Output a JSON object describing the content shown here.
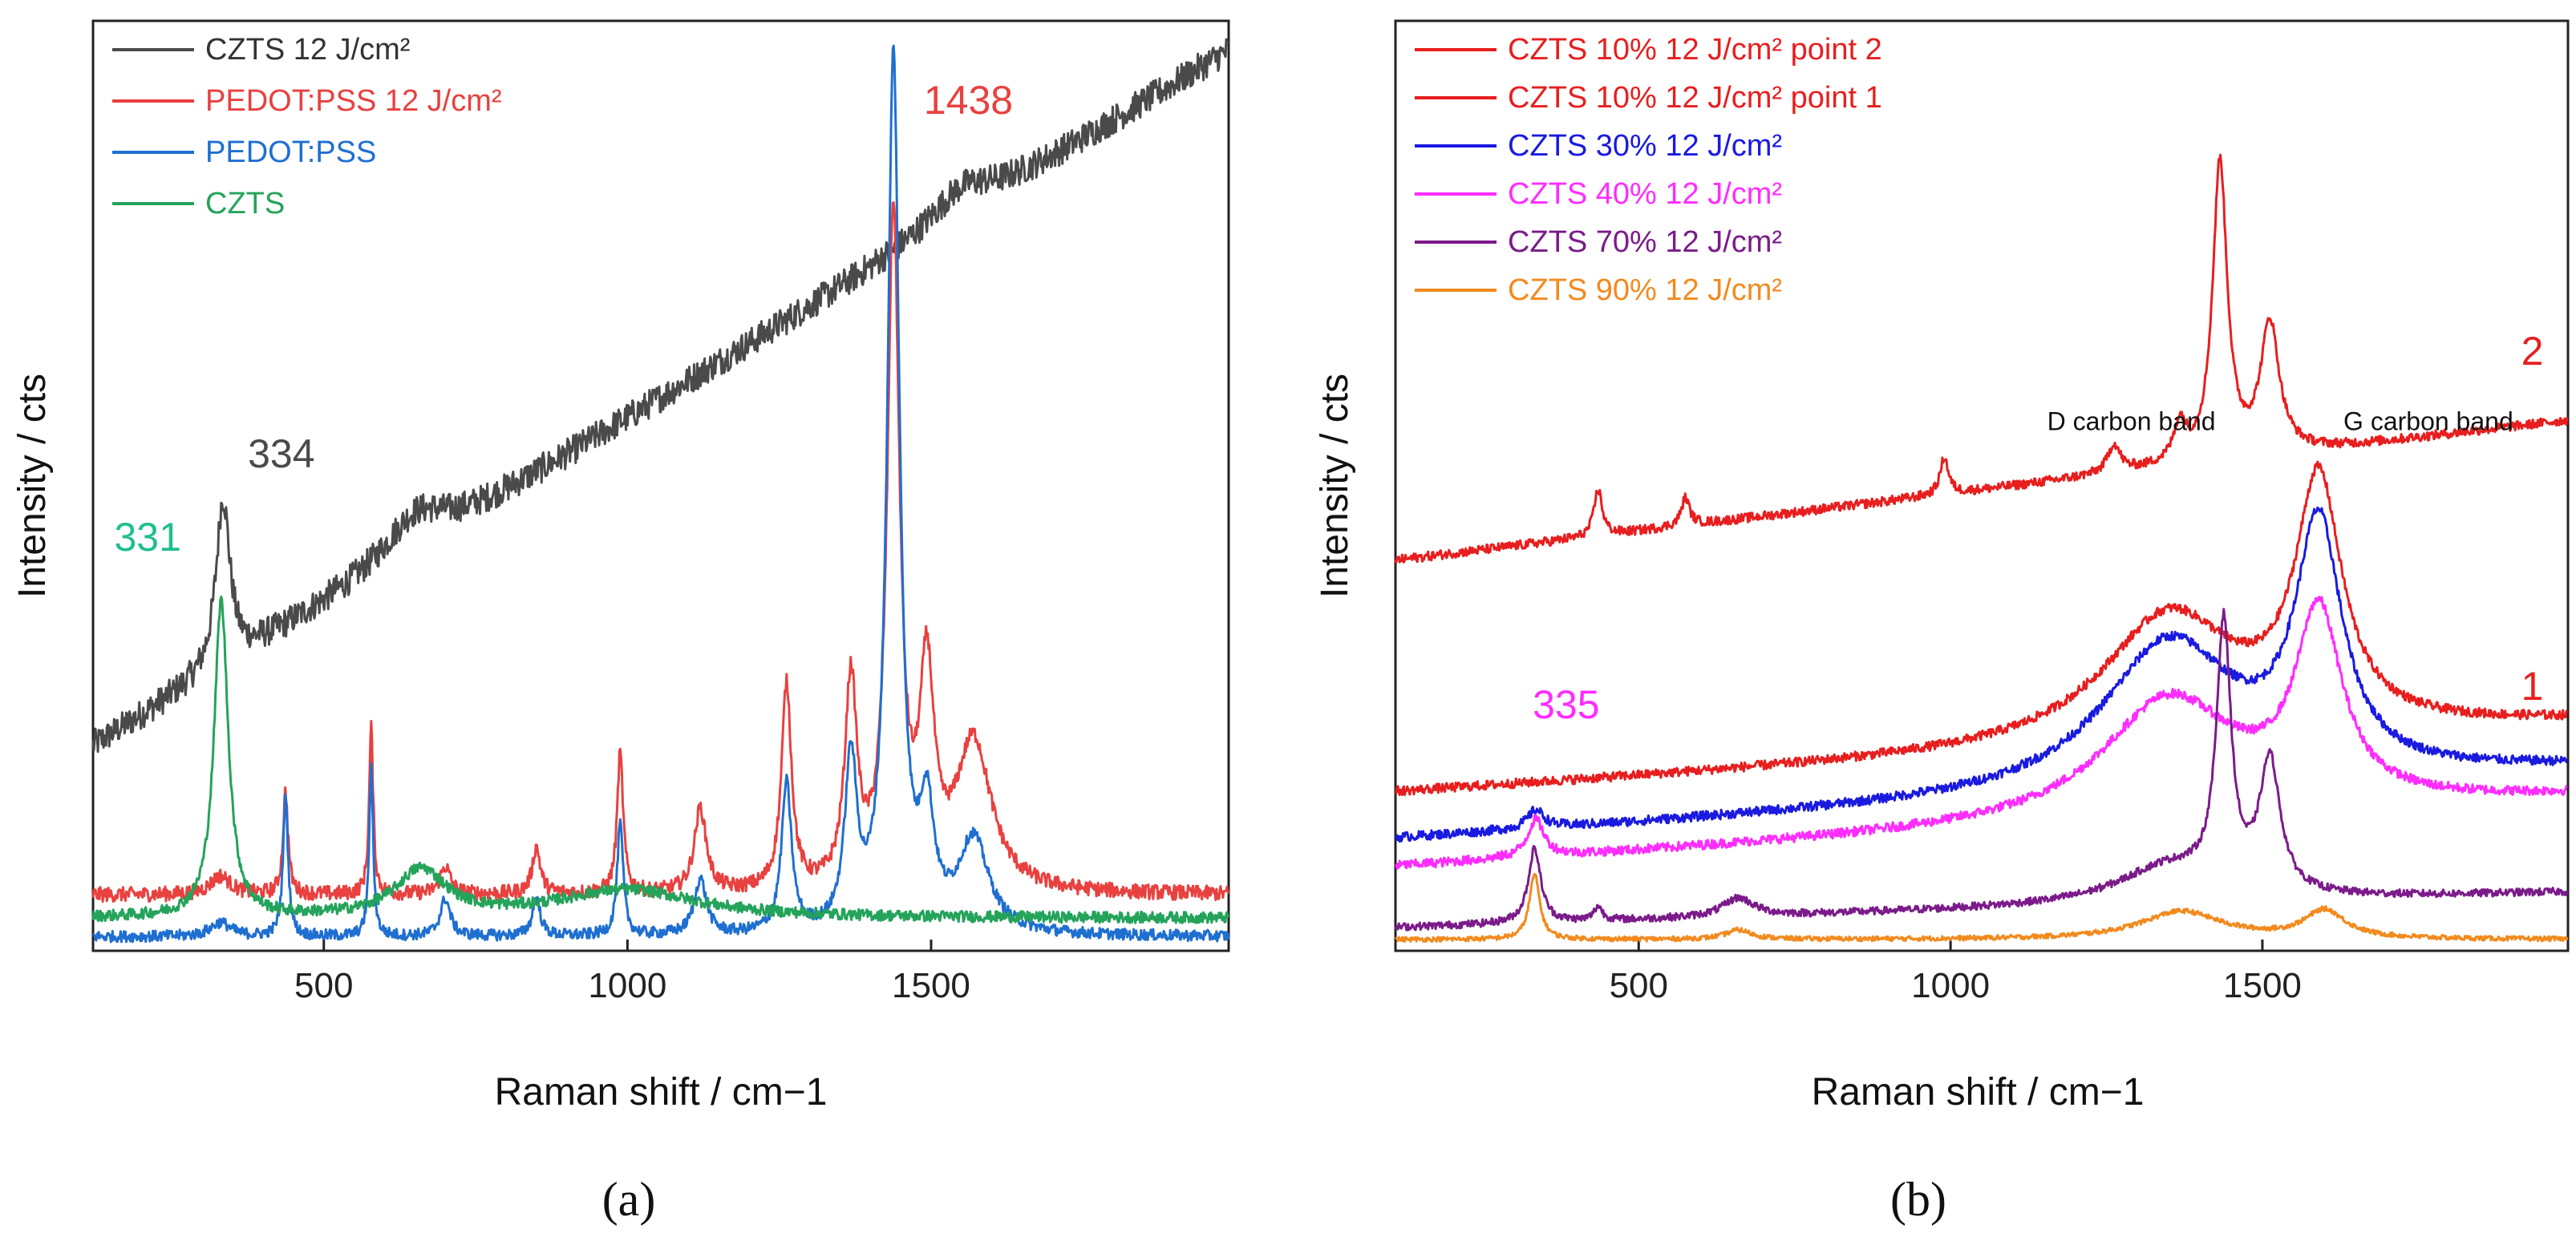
{
  "chart_data": [
    {
      "panel": "(a)",
      "type": "line",
      "xlabel": "Raman shift / cm−1",
      "ylabel": "Intensity / cts",
      "xlim": [
        120,
        1990
      ],
      "ylim": [
        0,
        100
      ],
      "xticks": [
        500,
        1000,
        1500
      ],
      "legend_position": "top-left",
      "series": [
        {
          "name": "CZTS 12 J/cm²",
          "color": "#4a4a4a",
          "baseline": 22,
          "slope": 0.04,
          "noise": 1.6,
          "peaks": [
            [
              334,
              18,
              14
            ],
            [
              650,
              4,
              60
            ],
            [
              1550,
              3,
              60
            ]
          ]
        },
        {
          "name": "PEDOT:PSS 12 J/cm²",
          "color": "#e8413f",
          "baseline": 6,
          "slope": 0,
          "noise": 0.8,
          "peaks": [
            [
              330,
              2,
              20
            ],
            [
              437,
              11,
              5
            ],
            [
              578,
              18,
              4
            ],
            [
              700,
              3,
              10
            ],
            [
              850,
              5,
              8
            ],
            [
              988,
              15,
              6
            ],
            [
              1120,
              9,
              12
            ],
            [
              1262,
              22,
              10
            ],
            [
              1368,
              22,
              12
            ],
            [
              1438,
              72,
              12
            ],
            [
              1493,
              22,
              14
            ],
            [
              1570,
              16,
              35
            ]
          ]
        },
        {
          "name": "PEDOT:PSS",
          "color": "#1f6fd1",
          "baseline": 1.5,
          "slope": 0,
          "noise": 0.6,
          "peaks": [
            [
              330,
              1.5,
              20
            ],
            [
              437,
              15,
              5
            ],
            [
              578,
              18,
              4
            ],
            [
              700,
              4,
              10
            ],
            [
              850,
              4,
              8
            ],
            [
              988,
              12,
              6
            ],
            [
              1120,
              6,
              12
            ],
            [
              1262,
              16,
              10
            ],
            [
              1368,
              18,
              12
            ],
            [
              1438,
              94,
              12
            ],
            [
              1493,
              12,
              14
            ],
            [
              1570,
              10,
              30
            ]
          ]
        },
        {
          "name": "CZTS",
          "color": "#24a35a",
          "baseline": 3.5,
          "slope": 0,
          "noise": 0.6,
          "peaks": [
            [
              331,
              34,
              14
            ],
            [
              660,
              5,
              50
            ],
            [
              1000,
              3,
              140
            ]
          ]
        }
      ],
      "annotations": [
        {
          "text": "334",
          "x": 375,
          "y": 52,
          "color": "#4a4a4a"
        },
        {
          "text": "331",
          "x": 155,
          "y": 43,
          "color": "#1fbf8f"
        },
        {
          "text": "1438",
          "x": 1488,
          "y": 90,
          "color": "#e8413f"
        }
      ]
    },
    {
      "panel": "(b)",
      "type": "line",
      "xlabel": "Raman shift / cm−1",
      "ylabel": "Intensity / cts",
      "xlim": [
        110,
        1990
      ],
      "ylim": [
        0,
        100
      ],
      "xticks": [
        500,
        1000,
        1500
      ],
      "legend_position": "top-left",
      "series": [
        {
          "name": "CZTS 10% 12 J/cm² point 2",
          "color": "#e81e1e",
          "baseline": 42,
          "slope": 0.008,
          "noise": 0.5,
          "peaks": [
            [
              435,
              5,
              8
            ],
            [
              575,
              3,
              8
            ],
            [
              990,
              4,
              8
            ],
            [
              1262,
              3,
              12
            ],
            [
              1368,
              4,
              12
            ],
            [
              1432,
              32,
              14
            ],
            [
              1512,
              14,
              18
            ]
          ]
        },
        {
          "name": "CZTS 10% 12 J/cm² point 1",
          "color": "#e81e1e",
          "baseline": 17,
          "slope": 0.004,
          "noise": 0.5,
          "peaks": [
            [
              1350,
              14,
              130
            ],
            [
              1590,
              26,
              45
            ]
          ]
        },
        {
          "name": "CZTS 30% 12 J/cm²",
          "color": "#1a1ae0",
          "baseline": 12,
          "slope": 0.004,
          "noise": 0.5,
          "peaks": [
            [
              335,
              2,
              16
            ],
            [
              1350,
              16,
              130
            ],
            [
              1590,
              26,
              45
            ]
          ]
        },
        {
          "name": "CZTS 40% 12 J/cm²",
          "color": "#ff2cff",
          "baseline": 9,
          "slope": 0.004,
          "noise": 0.5,
          "peaks": [
            [
              335,
              4,
              16
            ],
            [
              1350,
              13,
              130
            ],
            [
              1590,
              20,
              45
            ]
          ]
        },
        {
          "name": "CZTS 70% 12 J/cm²",
          "color": "#7b1b8a",
          "baseline": 2.5,
          "slope": 0.002,
          "noise": 0.4,
          "peaks": [
            [
              333,
              8,
              12
            ],
            [
              435,
              1.5,
              8
            ],
            [
              660,
              2,
              30
            ],
            [
              1350,
              4,
              100
            ],
            [
              1438,
              28,
              14
            ],
            [
              1512,
              14,
              20
            ]
          ]
        },
        {
          "name": "CZTS 90% 12 J/cm²",
          "color": "#f28a1e",
          "baseline": 1.2,
          "slope": 0,
          "noise": 0.25,
          "peaks": [
            [
              333,
              7,
              10
            ],
            [
              660,
              1,
              25
            ],
            [
              1370,
              3,
              80
            ],
            [
              1600,
              3,
              40
            ]
          ]
        }
      ],
      "annotations": [
        {
          "text": "335",
          "x": 330,
          "y": 25,
          "color": "#ff2cff"
        },
        {
          "text": "2",
          "x": 1915,
          "y": 63,
          "color": "#e81e1e"
        },
        {
          "text": "1",
          "x": 1915,
          "y": 27,
          "color": "#e81e1e"
        },
        {
          "text": "D carbon band",
          "x": 1155,
          "y": 56,
          "color": "#111111",
          "small": true
        },
        {
          "text": "G carbon band",
          "x": 1630,
          "y": 56,
          "color": "#111111",
          "small": true
        }
      ]
    }
  ]
}
